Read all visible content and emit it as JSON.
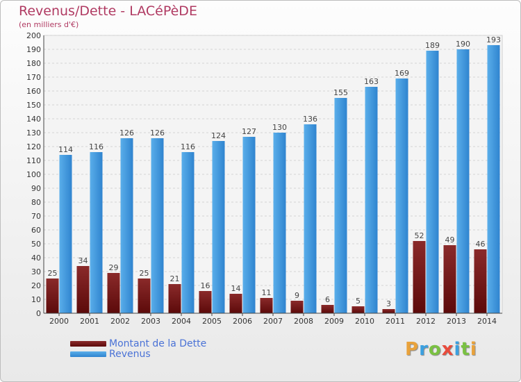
{
  "colors": {
    "debt_dark": "#5c0a0a",
    "debt_light": "#8a2a2a",
    "revenue_dark": "#2f84cf",
    "revenue_light": "#5aaeea",
    "logo": [
      "#e9a23b",
      "#3ba0e0",
      "#7ac142",
      "#e94b3c",
      "#3ba0e0",
      "#7ac142",
      "#e9a23b"
    ]
  },
  "logo_text": "Proxiti",
  "chart_data": {
    "type": "bar",
    "title": "Revenus/Dette - LACéPèDE",
    "subtitle": "(en milliers d'€)",
    "categories": [
      "2000",
      "2001",
      "2002",
      "2003",
      "2004",
      "2005",
      "2006",
      "2007",
      "2008",
      "2009",
      "2010",
      "2011",
      "2012",
      "2013",
      "2014"
    ],
    "series": [
      {
        "name": "Montant de la Dette",
        "values": [
          25,
          34,
          29,
          25,
          21,
          16,
          14,
          11,
          9,
          6,
          5,
          3,
          52,
          49,
          46
        ]
      },
      {
        "name": "Revenus",
        "values": [
          114,
          116,
          126,
          126,
          116,
          124,
          127,
          130,
          136,
          155,
          163,
          169,
          189,
          190,
          193
        ]
      }
    ],
    "ylim": [
      0,
      200
    ],
    "ytick_step": 10,
    "grid": true,
    "legend": "bottom-left"
  }
}
